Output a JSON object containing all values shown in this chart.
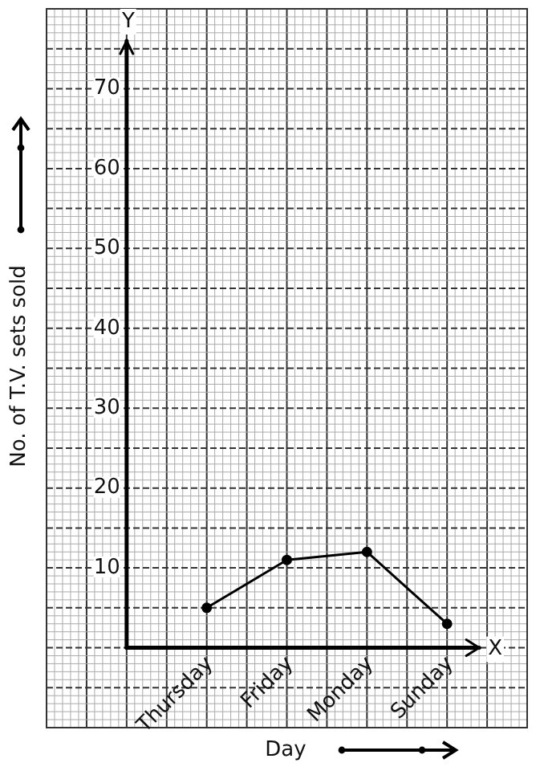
{
  "chart_data": {
    "type": "line",
    "xlabel": "Day",
    "ylabel": "No. of T.V. sets sold",
    "categories": [
      "Thursday",
      "Friday",
      "Monday",
      "Sunday"
    ],
    "series": [
      {
        "color": "#000000",
        "values": [
          5,
          11,
          12,
          3
        ]
      }
    ],
    "ylim": [
      -10,
      80
    ],
    "yticks": [
      10,
      20,
      30,
      40,
      50,
      60,
      70
    ],
    "annotations": [
      "X",
      "Y"
    ],
    "grid": true,
    "legend": false,
    "marker": "circle",
    "line_style": "solid"
  }
}
